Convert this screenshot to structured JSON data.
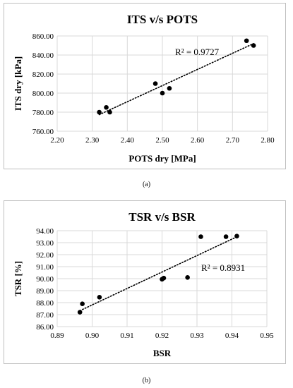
{
  "chart_data": [
    {
      "type": "scatter",
      "title": "ITS v/s POTS",
      "xlabel": "POTS dry [MPa]",
      "ylabel": "ITS dry [kPa]",
      "xlim": [
        2.2,
        2.8
      ],
      "ylim": [
        760.0,
        860.0
      ],
      "x_ticks": [
        "2.20",
        "2.30",
        "2.40",
        "2.50",
        "2.60",
        "2.70",
        "2.80"
      ],
      "y_ticks": [
        "760.00",
        "780.00",
        "800.00",
        "820.00",
        "840.00",
        "860.00"
      ],
      "grid": true,
      "trendline": "linear, dotted",
      "annotation": "R² = 0.9727",
      "x": [
        2.32,
        2.34,
        2.35,
        2.48,
        2.5,
        2.52,
        2.74,
        2.76
      ],
      "y": [
        780,
        785,
        780,
        810,
        800,
        805,
        855,
        850
      ],
      "caption": "(a)"
    },
    {
      "type": "scatter",
      "title": "TSR v/s BSR",
      "xlabel": "BSR",
      "ylabel": "TSR [%]",
      "xlim": [
        0.89,
        0.95
      ],
      "ylim": [
        86.0,
        94.0
      ],
      "x_ticks": [
        "0.89",
        "0.90",
        "0.91",
        "0.92",
        "0.93",
        "0.94",
        "0.95"
      ],
      "y_ticks": [
        "86.00",
        "87.00",
        "88.00",
        "89.00",
        "90.00",
        "91.00",
        "92.00",
        "93.00",
        "94.00"
      ],
      "grid": true,
      "trendline": "linear, dotted",
      "annotation": "R² = 0.8931",
      "x": [
        0.8965,
        0.8972,
        0.9021,
        0.92,
        0.9205,
        0.9273,
        0.9311,
        0.9383,
        0.9414
      ],
      "y": [
        87.2,
        87.9,
        88.45,
        89.95,
        90.05,
        90.1,
        93.5,
        93.5,
        93.55
      ],
      "caption": "(b)"
    }
  ]
}
